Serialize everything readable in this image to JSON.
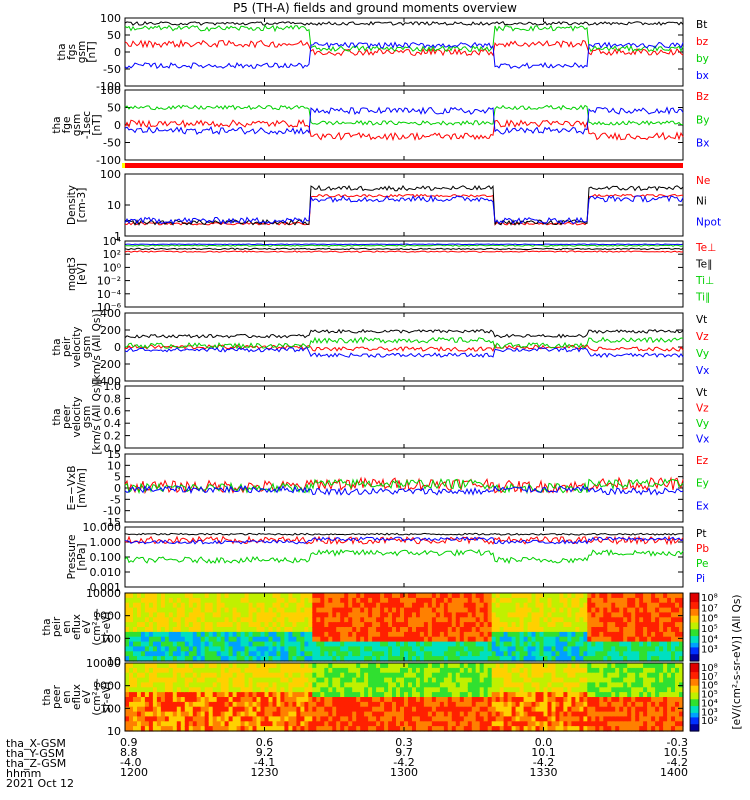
{
  "title": "P5 (TH-A) fields and ground moments overview",
  "date_label": "2021 Oct 12",
  "ephemeris": {
    "labels": [
      "tha_X-GSM",
      "tha_Y-GSM",
      "tha_Z-GSM",
      "hhmm"
    ],
    "columns": [
      {
        "x": "0.9",
        "y": "8.8",
        "z": "-4.0",
        "t": "1200"
      },
      {
        "x": "0.6",
        "y": "9.2",
        "z": "-4.1",
        "t": "1230"
      },
      {
        "x": "0.3",
        "y": "9.7",
        "z": "-4.2",
        "t": "1300"
      },
      {
        "x": "0.0",
        "y": "10.1",
        "z": "-4.2",
        "t": "1330"
      },
      {
        "x": "-0.3",
        "y": "10.5",
        "z": "-4.2",
        "t": "1400"
      }
    ]
  },
  "colors": {
    "black": "#000000",
    "red": "#ff0000",
    "green": "#00d000",
    "blue": "#0000ff"
  },
  "chart_data": [
    {
      "type": "line",
      "ylabel": [
        "tha",
        "fgs",
        "gsm",
        "[nT]"
      ],
      "yticks": [
        "100",
        "50",
        "0",
        "-50",
        "-100"
      ],
      "ylim": [
        -100,
        100
      ],
      "series": [
        {
          "name": "Bt",
          "color": "black"
        },
        {
          "name": "bz",
          "color": "red"
        },
        {
          "name": "by",
          "color": "green"
        },
        {
          "name": "bx",
          "color": "blue"
        }
      ]
    },
    {
      "type": "line",
      "ylabel": [
        "tha",
        "fge",
        "gsm",
        "-1sec",
        "[nT]"
      ],
      "yticks": [
        "100",
        "50",
        "0",
        "-50",
        "-100"
      ],
      "ylim": [
        -100,
        100
      ],
      "series": [
        {
          "name": "Bz",
          "color": "red"
        },
        {
          "name": "By",
          "color": "green"
        },
        {
          "name": "Bx",
          "color": "blue"
        }
      ]
    },
    {
      "type": "line",
      "ylabel": [
        "Density",
        "[cm-3]"
      ],
      "yticks": [
        "100",
        "10",
        "1"
      ],
      "scale": "log",
      "series": [
        {
          "name": "Ne",
          "color": "red"
        },
        {
          "name": "Ni",
          "color": "black"
        },
        {
          "name": "Npot",
          "color": "blue"
        }
      ]
    },
    {
      "type": "line",
      "ylabel": [
        "moqt3",
        "[eV]"
      ],
      "yticks": [
        "10⁴",
        "10²",
        "10⁰",
        "10⁻²",
        "10⁻⁴",
        "10⁻⁶"
      ],
      "scale": "log",
      "series": [
        {
          "name": "Te⊥",
          "color": "red"
        },
        {
          "name": "Te∥",
          "color": "black"
        },
        {
          "name": "Ti⊥",
          "color": "green"
        },
        {
          "name": "Ti∥",
          "color": "green"
        }
      ]
    },
    {
      "type": "line",
      "ylabel": [
        "tha",
        "peir",
        "velocity",
        "gsm",
        "[km/s (All Qs)]"
      ],
      "yticks": [
        "400",
        "200",
        "0",
        "-200",
        "-400"
      ],
      "ylim": [
        -400,
        400
      ],
      "series": [
        {
          "name": "Vt",
          "color": "black"
        },
        {
          "name": "Vz",
          "color": "red"
        },
        {
          "name": "Vy",
          "color": "green"
        },
        {
          "name": "Vx",
          "color": "blue"
        }
      ]
    },
    {
      "type": "line",
      "ylabel": [
        "tha",
        "peer",
        "velocity",
        "gsm",
        "[km/s (All Qs)]"
      ],
      "yticks": [
        "1.0",
        "0.8",
        "0.6",
        "0.4",
        "0.2",
        "0.0"
      ],
      "ylim": [
        0,
        1
      ],
      "series": [
        {
          "name": "Vt",
          "color": "black"
        },
        {
          "name": "Vz",
          "color": "red"
        },
        {
          "name": "Vy",
          "color": "green"
        },
        {
          "name": "Vx",
          "color": "blue"
        }
      ]
    },
    {
      "type": "line",
      "ylabel": [
        "E=−VxB",
        "[mV/m]"
      ],
      "yticks": [
        "15",
        "10",
        "5",
        "0",
        "-5",
        "-10",
        "-15"
      ],
      "ylim": [
        -15,
        15
      ],
      "series": [
        {
          "name": "Ez",
          "color": "red"
        },
        {
          "name": "Ey",
          "color": "green"
        },
        {
          "name": "Ex",
          "color": "blue"
        }
      ]
    },
    {
      "type": "line",
      "ylabel": [
        "Pressure",
        "[nPa]"
      ],
      "yticks": [
        "10.000",
        "1.000",
        "0.100",
        "0.010",
        "0.001"
      ],
      "scale": "log",
      "series": [
        {
          "name": "Pt",
          "color": "black"
        },
        {
          "name": "Pb",
          "color": "red"
        },
        {
          "name": "Pe",
          "color": "green"
        },
        {
          "name": "Pi",
          "color": "blue"
        }
      ]
    },
    {
      "type": "heatmap",
      "ylabel": [
        "tha",
        "peir",
        "en",
        "eflux",
        "eV",
        "(cm²-s-",
        "sr-eV)"
      ],
      "yticks": [
        "10000",
        "1000",
        "100",
        "10"
      ],
      "colorbar": [
        "10⁸",
        "10⁷",
        "10⁶",
        "10⁵",
        "10⁴",
        "10³"
      ]
    },
    {
      "type": "heatmap",
      "ylabel": [
        "tha",
        "peer",
        "en",
        "eflux",
        "eV",
        "(cm²-s-",
        "sr-eV)"
      ],
      "yticks": [
        "10000",
        "1000",
        "100",
        "10"
      ],
      "colorbar": [
        "10⁸",
        "10⁷",
        "10⁶",
        "10⁵",
        "10⁴",
        "10³",
        "10²"
      ]
    }
  ],
  "colorbar_label": "[eV/(cm²-s-sr-eV)] (All Qs)"
}
